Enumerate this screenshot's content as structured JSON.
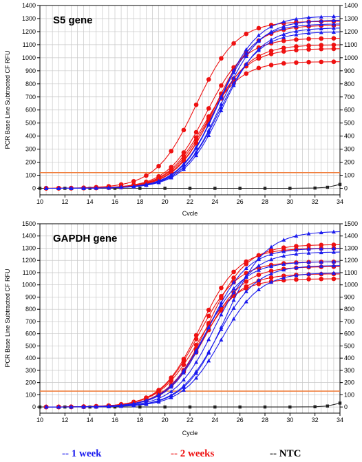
{
  "colors": {
    "one_week": "#1a1aee",
    "two_weeks": "#ee1111",
    "ntc": "#222222",
    "threshold": "#f08040",
    "grid": "#c8c8c8"
  },
  "legend": [
    {
      "label": "-- 1 week",
      "color": "#1a1aee"
    },
    {
      "label": "-- 2 weeks",
      "color": "#ee1111"
    },
    {
      "label": "-- NTC",
      "color": "#000000"
    }
  ],
  "chart_data": [
    {
      "type": "line",
      "title": "S5 gene",
      "xlabel": "Cvcle",
      "ylabel": "PCR Base Line Subtracted CF RFU",
      "xlim": [
        10,
        34
      ],
      "ylim": [
        -50,
        1400
      ],
      "xticks": [
        10,
        12,
        14,
        16,
        18,
        20,
        22,
        24,
        26,
        28,
        30,
        32,
        34
      ],
      "yticks": [
        0,
        100,
        200,
        300,
        400,
        500,
        600,
        700,
        800,
        900,
        1000,
        1100,
        1200,
        1300,
        1400
      ],
      "threshold": 120,
      "grid": true,
      "series": [
        {
          "group": "1 week",
          "marker": "triangle",
          "plateau": 1320,
          "midpoint": 24.3,
          "slope": 1.55
        },
        {
          "group": "1 week",
          "marker": "triangle",
          "plateau": 1290,
          "midpoint": 24.5,
          "slope": 1.55
        },
        {
          "group": "1 week",
          "marker": "triangle",
          "plateau": 1260,
          "midpoint": 24.2,
          "slope": 1.5
        },
        {
          "group": "1 week",
          "marker": "triangle",
          "plateau": 1230,
          "midpoint": 24.6,
          "slope": 1.55
        },
        {
          "group": "1 week",
          "marker": "triangle",
          "plateau": 1200,
          "midpoint": 24.4,
          "slope": 1.55
        },
        {
          "group": "2 weeks",
          "marker": "circle",
          "plateau": 1280,
          "midpoint": 22.5,
          "slope": 1.6
        },
        {
          "group": "2 weeks",
          "marker": "circle",
          "plateau": 1250,
          "midpoint": 24.0,
          "slope": 1.55
        },
        {
          "group": "2 weeks",
          "marker": "circle",
          "plateau": 1150,
          "midpoint": 23.3,
          "slope": 1.55
        },
        {
          "group": "2 weeks",
          "marker": "circle",
          "plateau": 1100,
          "midpoint": 23.7,
          "slope": 1.55
        },
        {
          "group": "2 weeks",
          "marker": "circle",
          "plateau": 1070,
          "midpoint": 23.5,
          "slope": 1.55
        },
        {
          "group": "2 weeks",
          "marker": "circle",
          "plateau": 970,
          "midpoint": 23.1,
          "slope": 1.5
        },
        {
          "group": "NTC",
          "marker": "square",
          "x": [
            10,
            12,
            14,
            16,
            18,
            20,
            22,
            24,
            26,
            28,
            30,
            32,
            33,
            34
          ],
          "y": [
            0,
            0,
            0,
            0,
            0,
            0,
            0,
            0,
            0,
            0,
            0,
            2,
            8,
            30
          ]
        }
      ]
    },
    {
      "type": "line",
      "title": "GAPDH gene",
      "xlabel": "Cycle",
      "ylabel": "PCR Base Line Subtracted CF RFU",
      "xlim": [
        10,
        34
      ],
      "ylim": [
        -50,
        1500
      ],
      "xticks": [
        10,
        12,
        14,
        16,
        18,
        20,
        22,
        24,
        26,
        28,
        30,
        32,
        34
      ],
      "yticks": [
        0,
        100,
        200,
        300,
        400,
        500,
        600,
        700,
        800,
        900,
        1000,
        1100,
        1200,
        1300,
        1400,
        1500
      ],
      "threshold": 130,
      "grid": true,
      "series": [
        {
          "group": "1 week",
          "marker": "triangle",
          "plateau": 1440,
          "midpoint": 24.8,
          "slope": 1.6
        },
        {
          "group": "1 week",
          "marker": "triangle",
          "plateau": 1300,
          "midpoint": 23.5,
          "slope": 1.55
        },
        {
          "group": "1 week",
          "marker": "triangle",
          "plateau": 1270,
          "midpoint": 23.9,
          "slope": 1.55
        },
        {
          "group": "1 week",
          "marker": "triangle",
          "plateau": 1190,
          "midpoint": 23.2,
          "slope": 1.55
        },
        {
          "group": "1 week",
          "marker": "triangle",
          "plateau": 1160,
          "midpoint": 24.2,
          "slope": 1.55
        },
        {
          "group": "1 week",
          "marker": "triangle",
          "plateau": 1100,
          "midpoint": 24.5,
          "slope": 1.55
        },
        {
          "group": "2 weeks",
          "marker": "circle",
          "plateau": 1330,
          "midpoint": 23.4,
          "slope": 1.55
        },
        {
          "group": "2 weeks",
          "marker": "circle",
          "plateau": 1300,
          "midpoint": 22.8,
          "slope": 1.55
        },
        {
          "group": "2 weeks",
          "marker": "circle",
          "plateau": 1190,
          "midpoint": 22.7,
          "slope": 1.55
        },
        {
          "group": "2 weeks",
          "marker": "circle",
          "plateau": 1150,
          "midpoint": 23.2,
          "slope": 1.55
        },
        {
          "group": "2 weeks",
          "marker": "circle",
          "plateau": 1090,
          "midpoint": 23.0,
          "slope": 1.55
        },
        {
          "group": "2 weeks",
          "marker": "circle",
          "plateau": 1050,
          "midpoint": 22.6,
          "slope": 1.55
        },
        {
          "group": "NTC",
          "marker": "square",
          "x": [
            10,
            12,
            14,
            16,
            18,
            20,
            22,
            24,
            26,
            28,
            30,
            32,
            33,
            34
          ],
          "y": [
            0,
            0,
            0,
            0,
            0,
            0,
            0,
            0,
            0,
            0,
            0,
            2,
            8,
            32
          ]
        }
      ]
    }
  ]
}
